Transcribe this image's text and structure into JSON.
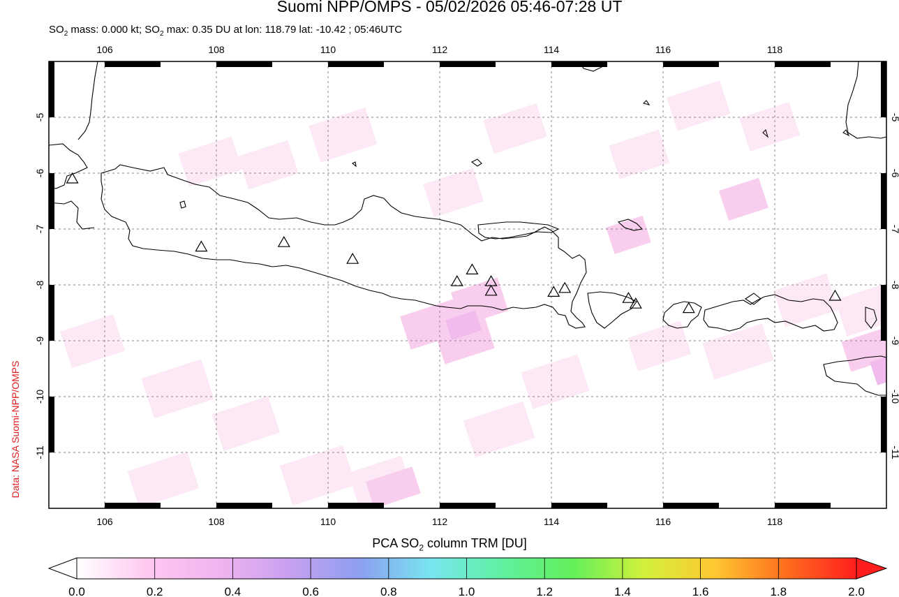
{
  "title": "Suomi NPP/OMPS - 05/02/2026 05:46-07:28 UT",
  "subtitle": {
    "prefix": "SO",
    "sub": "2",
    "mid1": " mass: 0.000 kt; SO",
    "sub2": "2",
    "rest": " max: 0.35 DU at lon: 118.79 lat: -10.42 ; 05:46UTC"
  },
  "credit": "Data: NASA Suomi-NPP/OMPS",
  "map": {
    "lon_range": [
      105,
      120
    ],
    "lat_range": [
      -12,
      -4
    ],
    "lon_ticks": [
      "106",
      "108",
      "110",
      "112",
      "114",
      "116",
      "118"
    ],
    "lat_ticks": [
      "-5",
      "-6",
      "-7",
      "-8",
      "-9",
      "-10",
      "-11"
    ],
    "volcanoes": [
      {
        "lon": 105.42,
        "lat": -6.1
      },
      {
        "lon": 107.73,
        "lat": -7.32
      },
      {
        "lon": 109.21,
        "lat": -7.24
      },
      {
        "lon": 110.44,
        "lat": -7.54
      },
      {
        "lon": 112.31,
        "lat": -7.94
      },
      {
        "lon": 112.58,
        "lat": -7.73
      },
      {
        "lon": 112.92,
        "lat": -7.94
      },
      {
        "lon": 112.92,
        "lat": -8.11
      },
      {
        "lon": 114.04,
        "lat": -8.13
      },
      {
        "lon": 114.24,
        "lat": -8.06
      },
      {
        "lon": 115.38,
        "lat": -8.24
      },
      {
        "lon": 115.51,
        "lat": -8.34
      },
      {
        "lon": 116.46,
        "lat": -8.42
      },
      {
        "lon": 119.08,
        "lat": -8.2
      }
    ]
  },
  "colorbar": {
    "title_pre": "PCA SO",
    "title_sub": "2",
    "title_post": " column TRM [DU]",
    "ticks": [
      "0.0",
      "0.2",
      "0.4",
      "0.6",
      "0.8",
      "1.0",
      "1.2",
      "1.4",
      "1.6",
      "1.8",
      "2.0"
    ],
    "colors": [
      "#ffffff",
      "#ffc8f0",
      "#f0b4f0",
      "#c8a0f0",
      "#8c9ff0",
      "#78e6f0",
      "#5ff0a0",
      "#64f05a",
      "#d2f03c",
      "#ffc832",
      "#ff6e1e",
      "#ff1e1e"
    ]
  }
}
